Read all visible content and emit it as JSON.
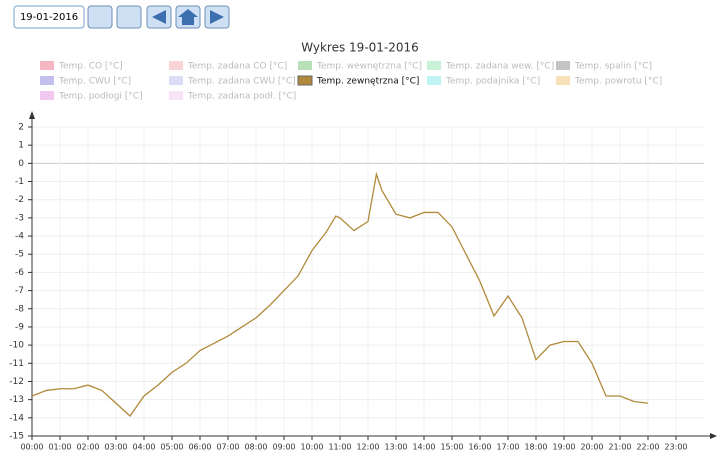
{
  "toolbar": {
    "date": "19-01-2016"
  },
  "chart_data": {
    "type": "line",
    "title": "Wykres 19-01-2016",
    "grid": true,
    "xlim": [
      0,
      24
    ],
    "xticks": [
      {
        "value": 0,
        "label": "00:00"
      },
      {
        "value": 1,
        "label": "01:00"
      },
      {
        "value": 2,
        "label": "02:00"
      },
      {
        "value": 3,
        "label": "03:00"
      },
      {
        "value": 4,
        "label": "04:00"
      },
      {
        "value": 5,
        "label": "05:00"
      },
      {
        "value": 6,
        "label": "06:00"
      },
      {
        "value": 7,
        "label": "07:00"
      },
      {
        "value": 8,
        "label": "08:00"
      },
      {
        "value": 9,
        "label": "09:00"
      },
      {
        "value": 10,
        "label": "10:00"
      },
      {
        "value": 11,
        "label": "11:00"
      },
      {
        "value": 12,
        "label": "12:00"
      },
      {
        "value": 13,
        "label": "13:00"
      },
      {
        "value": 14,
        "label": "14:00"
      },
      {
        "value": 15,
        "label": "15:00"
      },
      {
        "value": 16,
        "label": "16:00"
      },
      {
        "value": 17,
        "label": "17:00"
      },
      {
        "value": 18,
        "label": "18:00"
      },
      {
        "value": 19,
        "label": "19:00"
      },
      {
        "value": 20,
        "label": "20:00"
      },
      {
        "value": 21,
        "label": "21:00"
      },
      {
        "value": 22,
        "label": "22:00"
      },
      {
        "value": 23,
        "label": "23:00"
      }
    ],
    "ylim": [
      -15,
      2
    ],
    "yticks": [
      2,
      1,
      0,
      -1,
      -2,
      -3,
      -4,
      -5,
      -6,
      -7,
      -8,
      -9,
      -10,
      -11,
      -12,
      -13,
      -14,
      -15
    ],
    "x": [
      0,
      0.5,
      1,
      1.5,
      2,
      2.5,
      3,
      3.5,
      4,
      4.5,
      5,
      5.5,
      6,
      6.5,
      7,
      7.5,
      8,
      8.5,
      9,
      9.5,
      10,
      10.5,
      10.85,
      11,
      11.5,
      12,
      12.3,
      12.5,
      13,
      13.5,
      14,
      14.5,
      15,
      15.5,
      16,
      16.5,
      17,
      17.5,
      18,
      18.5,
      19,
      19.5,
      20,
      20.5,
      21,
      21.5,
      22
    ],
    "series": [
      {
        "name": "Temp. CO [°C]",
        "color": "#f4b6c2",
        "visible": false
      },
      {
        "name": "Temp. zadana CO [°C]",
        "color": "#f9d4d4",
        "visible": false
      },
      {
        "name": "Temp. wewnętrzna [°C]",
        "color": "#b8e0b8",
        "visible": false
      },
      {
        "name": "Temp. zadana wew. [°C]",
        "color": "#c8f2d8",
        "visible": false
      },
      {
        "name": "Temp. spalin [°C]",
        "color": "#c4c4c4",
        "visible": false
      },
      {
        "name": "Temp. CWU [°C]",
        "color": "#c4c0ec",
        "visible": false
      },
      {
        "name": "Temp. zadana CWU [°C]",
        "color": "#dcdcf6",
        "visible": false
      },
      {
        "name": "Temp. zewnętrzna [°C]",
        "color": "#b08a3a",
        "visible": true,
        "values": [
          -12.8,
          -12.5,
          -12.4,
          -12.4,
          -12.2,
          -12.5,
          -13.2,
          -13.9,
          -12.8,
          -12.2,
          -11.5,
          -11.0,
          -10.3,
          -9.9,
          -9.5,
          -9.0,
          -8.5,
          -7.8,
          -7.0,
          -6.2,
          -4.8,
          -3.8,
          -2.9,
          -3.0,
          -3.7,
          -3.2,
          -0.6,
          -1.5,
          -2.8,
          -3.0,
          -2.7,
          -2.7,
          -3.5,
          -5.0,
          -6.5,
          -8.4,
          -7.3,
          -8.5,
          -10.8,
          -10.0,
          -9.8,
          -9.8,
          -11.0,
          -12.8,
          -12.8,
          -13.1,
          -13.2
        ]
      },
      {
        "name": "Temp. podajnika [°C]",
        "color": "#c0f4f4",
        "visible": false
      },
      {
        "name": "Temp. powrotu [°C]",
        "color": "#f8e0b8",
        "visible": false
      },
      {
        "name": "Temp. podłogi [°C]",
        "color": "#f0c8f0",
        "visible": false
      },
      {
        "name": "Temp. zadana podł. [°C]",
        "color": "#f8e4f8",
        "visible": false
      }
    ]
  }
}
